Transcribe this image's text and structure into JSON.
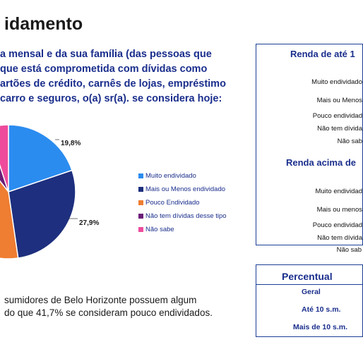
{
  "title": "idamento",
  "question": [
    "a mensal e da sua família (das pessoas que",
    "que está comprometida com dívidas como",
    "artões de crédito, carnês de lojas, empréstimo",
    "carro e seguros, o(a) sr(a). se considera hoje:"
  ],
  "chart_data": {
    "type": "pie",
    "slices": [
      {
        "label": "Muito endividado",
        "value": 19.8,
        "color": "#2b8cf0",
        "data_label": "19,8%"
      },
      {
        "label": "Mais ou Menos endividado",
        "value": 27.9,
        "color": "#1d2f7e",
        "data_label": "27,9%"
      },
      {
        "label": "Pouco Endividado",
        "value": 41.7,
        "color": "#ef7d32",
        "data_label": ""
      },
      {
        "label": "Não tem dívidas desse tipo",
        "value": 5.6,
        "color": "#6b1d78",
        "data_label": ""
      },
      {
        "label": "Não sabe",
        "value": 5.0,
        "color": "#ee4b9c",
        "data_label": ""
      }
    ],
    "legend_position": "right"
  },
  "summary": [
    "sumidores de Belo Horizonte possuem algum",
    "do que 41,7% se consideram pouco endividados."
  ],
  "panel1": {
    "title1": "Renda de até 1",
    "rows1": [
      "Muito endividado",
      "Mais ou Menos",
      "Pouco endividad",
      "Não tem dívida",
      "Não sab"
    ],
    "title2": "Renda acima de",
    "rows2": [
      "Muito endividad",
      "Mais ou menos",
      "Pouco endividad",
      "Não tem dívida",
      "Não sab"
    ]
  },
  "panel2": {
    "title": "Percentual",
    "rows": [
      "Geral",
      "Até 10 s.m.",
      "Mais de 10 s.m."
    ]
  }
}
